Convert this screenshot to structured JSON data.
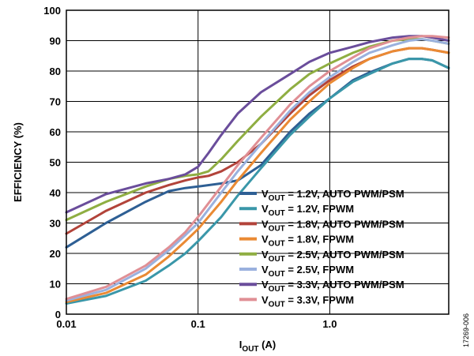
{
  "figure_id": "17269-006",
  "chart_data": {
    "type": "line",
    "xscale": "log",
    "xlim": [
      0.01,
      8
    ],
    "ylim": [
      0,
      100
    ],
    "xticks": [
      0.01,
      0.1,
      1.0
    ],
    "xtick_labels": [
      "0.01",
      "0.1",
      "1.0"
    ],
    "yticks": [
      0,
      10,
      20,
      30,
      40,
      50,
      60,
      70,
      80,
      90,
      100
    ],
    "grid": true,
    "legend_position": "bottom-right",
    "xlabel": {
      "main": "I",
      "sub": "OUT",
      "rest": " (A)"
    },
    "ylabel": "EFFICIENCY (%)",
    "series": [
      {
        "label_main": "V",
        "label_sub": "OUT",
        "label_rest": " = 1.2V, AUTO PWM/PSM",
        "color": "#2e5f94",
        "x": [
          0.01,
          0.02,
          0.04,
          0.06,
          0.08,
          0.1,
          0.15,
          0.2,
          0.3,
          0.5,
          0.7,
          1.0,
          1.5,
          2.0,
          3.0,
          4.0,
          5.0,
          6.0,
          8.0
        ],
        "y": [
          22,
          30,
          37,
          40.5,
          41.5,
          42,
          43,
          44,
          49,
          60,
          66,
          71,
          77,
          79.5,
          82.5,
          84,
          84,
          83.5,
          81
        ]
      },
      {
        "label_main": "V",
        "label_sub": "OUT",
        "label_rest": " = 1.2V, FPWM",
        "color": "#3a97a9",
        "x": [
          0.01,
          0.02,
          0.04,
          0.06,
          0.08,
          0.1,
          0.15,
          0.2,
          0.3,
          0.5,
          0.7,
          1.0,
          1.5,
          2.0,
          3.0,
          4.0,
          5.0,
          6.0,
          8.0
        ],
        "y": [
          3.5,
          6,
          11,
          16,
          20,
          24,
          32,
          39,
          48,
          59,
          65,
          71,
          76.5,
          79,
          82.5,
          84,
          84,
          83.5,
          81
        ]
      },
      {
        "label_main": "V",
        "label_sub": "OUT",
        "label_rest": " = 1.8V, AUTO PWM/PSM",
        "color": "#b2433a",
        "x": [
          0.01,
          0.02,
          0.04,
          0.06,
          0.08,
          0.1,
          0.12,
          0.15,
          0.2,
          0.3,
          0.5,
          0.7,
          1.0,
          1.5,
          2.0,
          3.0,
          4.0,
          5.0,
          6.0,
          8.0
        ],
        "y": [
          26.5,
          34,
          40,
          42.5,
          44,
          45,
          45.5,
          47,
          50,
          56,
          66,
          72,
          77,
          81.5,
          84,
          86.5,
          87.5,
          87.5,
          87,
          86
        ]
      },
      {
        "label_main": "V",
        "label_sub": "OUT",
        "label_rest": " = 1.8V, FPWM",
        "color": "#ea8a34",
        "x": [
          0.01,
          0.02,
          0.04,
          0.06,
          0.08,
          0.1,
          0.15,
          0.2,
          0.3,
          0.5,
          0.7,
          1.0,
          1.5,
          2.0,
          3.0,
          4.0,
          5.0,
          6.0,
          8.0
        ],
        "y": [
          4,
          7,
          13,
          19,
          24,
          28,
          37,
          44,
          53,
          64,
          70,
          76,
          81,
          84,
          86.5,
          87.5,
          87.5,
          87,
          86
        ]
      },
      {
        "label_main": "V",
        "label_sub": "OUT",
        "label_rest": " = 2.5V, AUTO PWM/PSM",
        "color": "#8fae42",
        "x": [
          0.01,
          0.02,
          0.04,
          0.06,
          0.08,
          0.1,
          0.12,
          0.15,
          0.2,
          0.3,
          0.5,
          0.7,
          1.0,
          1.5,
          2.0,
          3.0,
          4.0,
          5.0,
          6.0,
          8.0
        ],
        "y": [
          31,
          37,
          42,
          44.5,
          45.5,
          46,
          47,
          51,
          57,
          65,
          74,
          79,
          82.5,
          86,
          88,
          90,
          90.5,
          90.5,
          90,
          89
        ]
      },
      {
        "label_main": "V",
        "label_sub": "OUT",
        "label_rest": " = 2.5V, FPWM",
        "color": "#9ab1de",
        "x": [
          0.01,
          0.02,
          0.04,
          0.06,
          0.08,
          0.1,
          0.15,
          0.2,
          0.3,
          0.5,
          0.7,
          1.0,
          1.5,
          2.0,
          3.0,
          4.0,
          5.0,
          6.0,
          8.0
        ],
        "y": [
          4.5,
          8,
          15,
          21,
          26,
          30,
          40,
          47,
          56,
          67,
          73,
          78,
          83,
          86,
          88.5,
          90,
          90.5,
          90,
          89
        ]
      },
      {
        "label_main": "V",
        "label_sub": "OUT",
        "label_rest": " = 3.3V, AUTO PWM/PSM",
        "color": "#6a4d9b",
        "x": [
          0.01,
          0.02,
          0.04,
          0.06,
          0.08,
          0.1,
          0.12,
          0.15,
          0.2,
          0.3,
          0.5,
          0.7,
          1.0,
          1.5,
          2.0,
          3.0,
          4.0,
          5.0,
          6.0,
          8.0
        ],
        "y": [
          33.5,
          39.5,
          43,
          44.5,
          46,
          48.5,
          53,
          59,
          66,
          73,
          79,
          83,
          86,
          88,
          89.5,
          91,
          91.5,
          91.5,
          91,
          90
        ]
      },
      {
        "label_main": "V",
        "label_sub": "OUT",
        "label_rest": " = 3.3V, FPWM",
        "color": "#e08f95",
        "x": [
          0.01,
          0.02,
          0.04,
          0.06,
          0.08,
          0.1,
          0.15,
          0.2,
          0.3,
          0.5,
          0.7,
          1.0,
          1.5,
          2.0,
          3.0,
          4.0,
          5.0,
          6.0,
          8.0
        ],
        "y": [
          5,
          9,
          16,
          22,
          27,
          32,
          42,
          49,
          58,
          69,
          75,
          80,
          84.5,
          87.5,
          90,
          91,
          91.5,
          91.5,
          91
        ]
      }
    ]
  }
}
